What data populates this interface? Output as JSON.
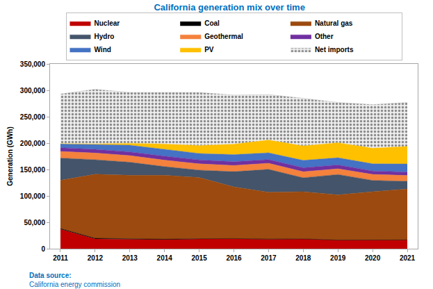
{
  "chart_data": {
    "type": "area",
    "stacked": true,
    "title": "California generation mix over time",
    "y_label": "Generation (GWh)",
    "annotations": [
      "Data source:",
      "California energy commission"
    ],
    "x": [
      2011,
      2012,
      2013,
      2014,
      2015,
      2016,
      2017,
      2018,
      2019,
      2020,
      2021
    ],
    "xlim": [
      2010.7,
      2021.3
    ],
    "xticks": [
      2011,
      2012,
      2013,
      2014,
      2015,
      2016,
      2017,
      2018,
      2019,
      2020,
      2021
    ],
    "ylim": [
      0,
      350000
    ],
    "yticks": [
      0,
      {
        "value": 50000,
        "label": "50,000"
      },
      {
        "value": 100000,
        "label": "100,000"
      },
      {
        "value": 150000,
        "label": "150,000"
      },
      {
        "value": 200000,
        "label": "200,000"
      },
      {
        "value": 250000,
        "label": "250,000"
      },
      {
        "value": 300000,
        "label": "300,000"
      },
      {
        "value": 350000,
        "label": "350,000"
      }
    ],
    "grid": false,
    "legend": "top",
    "series": [
      {
        "name": "Nuclear",
        "color": "#c00000",
        "values": [
          36700,
          18500,
          17800,
          17000,
          18500,
          18900,
          17900,
          18300,
          16100,
          16300,
          16500
        ]
      },
      {
        "name": "Coal",
        "color": "#000000",
        "values": [
          1500,
          1200,
          1000,
          1000,
          300,
          300,
          300,
          300,
          250,
          250,
          250
        ]
      },
      {
        "name": "Natural gas",
        "color": "#9c4a0f",
        "values": [
          91500,
          121300,
          120200,
          121000,
          116200,
          97800,
          88800,
          89400,
          85650,
          91450,
          96250
        ]
      },
      {
        "name": "Hydro",
        "color": "#44546a",
        "values": [
          42000,
          27500,
          24800,
          16500,
          13800,
          28900,
          43300,
          26300,
          38500,
          21400,
          14600
        ]
      },
      {
        "name": "Geothermal",
        "color": "#f4813c",
        "values": [
          12500,
          12700,
          12500,
          12200,
          11900,
          11800,
          11500,
          11500,
          10900,
          11300,
          11100
        ]
      },
      {
        "name": "Other",
        "color": "#7030a0",
        "values": [
          7000,
          7000,
          7000,
          7500,
          7500,
          7000,
          7000,
          7500,
          7200,
          6500,
          6500
        ]
      },
      {
        "name": "Wind",
        "color": "#4472c4",
        "values": [
          7600,
          9200,
          12700,
          13100,
          12200,
          13500,
          12800,
          14000,
          13700,
          13700,
          15200
        ]
      },
      {
        "name": "PV",
        "color": "#ffc000",
        "values": [
          300,
          1000,
          3800,
          10000,
          15000,
          19800,
          24300,
          27300,
          28500,
          29500,
          33300
        ]
      },
      {
        "name": "Net imports",
        "color": "#bfbfbf",
        "marker": "dotted",
        "values": [
          93900,
          103600,
          96200,
          97700,
          100600,
          93000,
          86100,
          90400,
          76200,
          82600,
          83300
        ]
      }
    ]
  }
}
